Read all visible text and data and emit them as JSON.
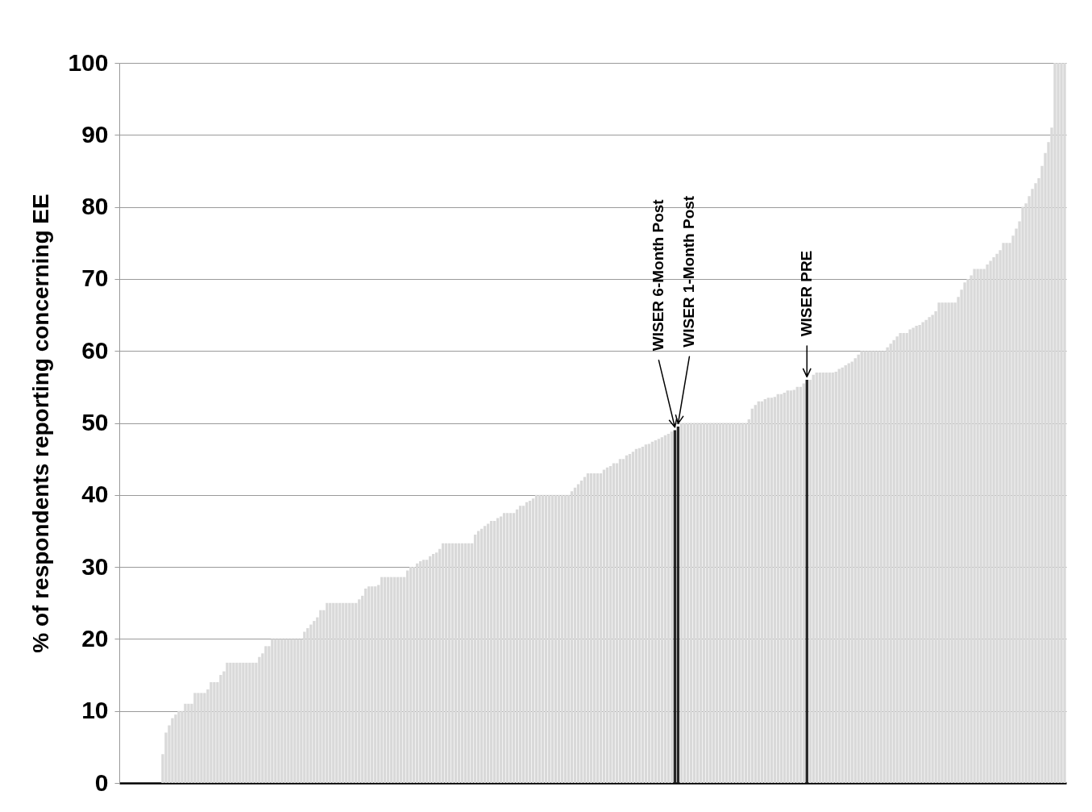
{
  "chart_data": {
    "type": "bar",
    "ylabel": "% of respondents reporting concerning EE",
    "categories": [
      null,
      null,
      null,
      null,
      null,
      null,
      null,
      null,
      null,
      null,
      null,
      null,
      null,
      null,
      null,
      null,
      null,
      null,
      null,
      null,
      null,
      null,
      null,
      null,
      null,
      null,
      null,
      null,
      null,
      null,
      null,
      null,
      null,
      null,
      null,
      null,
      null,
      null,
      null,
      null,
      null,
      null,
      null,
      null,
      null,
      null,
      null,
      null,
      null,
      null,
      null,
      null,
      null,
      null,
      null,
      null,
      null,
      null,
      null,
      null,
      null,
      null,
      null,
      null,
      null,
      null,
      null,
      null,
      null,
      null,
      null,
      null,
      null,
      null,
      null,
      null,
      null,
      null,
      null,
      null,
      null,
      null,
      null,
      null,
      null,
      null,
      null,
      null,
      null,
      null,
      null,
      null,
      null,
      null,
      null,
      null,
      null,
      null,
      null,
      null,
      null,
      null,
      null,
      null,
      null,
      null,
      null,
      null,
      null,
      null,
      null,
      null,
      null,
      null,
      null,
      null,
      null,
      null,
      null,
      null,
      null,
      null,
      null,
      null,
      null,
      null,
      null,
      null,
      null,
      null,
      null,
      null,
      null,
      null,
      null,
      null,
      null,
      null,
      null,
      null,
      null,
      null,
      null,
      null,
      null,
      null,
      null,
      null,
      null,
      null,
      null,
      null,
      null,
      null,
      null,
      null,
      null,
      null,
      null,
      null,
      null,
      null,
      null,
      null,
      null,
      null,
      null,
      null,
      null,
      null,
      null,
      null,
      null,
      null,
      null,
      null,
      null,
      null,
      null,
      null,
      null,
      null,
      null,
      null,
      null,
      null,
      null,
      null,
      null,
      null,
      null,
      null,
      null,
      null,
      null,
      null,
      null,
      null,
      null,
      null,
      null,
      null,
      null,
      null,
      null,
      null,
      null,
      null,
      null,
      null,
      null,
      null,
      null,
      null,
      null,
      null,
      null,
      null,
      null,
      null,
      null,
      null,
      null,
      null,
      null,
      null,
      null,
      null,
      null,
      null,
      null,
      null,
      null,
      null,
      null,
      null,
      null,
      null,
      null,
      null,
      null,
      null,
      null,
      null,
      null,
      null,
      null,
      null,
      null,
      null,
      null,
      null,
      null,
      null,
      null,
      null,
      null,
      null,
      null,
      null,
      null,
      null,
      null,
      null,
      null,
      null,
      null,
      null,
      null,
      null,
      null,
      null,
      null,
      null,
      null,
      null,
      null,
      null,
      null,
      null,
      null,
      null,
      null,
      null,
      null,
      null,
      null,
      null,
      null,
      null,
      null,
      null,
      null,
      null
    ],
    "values": [
      0,
      0,
      0,
      0,
      0,
      0,
      0,
      0,
      0,
      0,
      0,
      0,
      0,
      4,
      7,
      8,
      9,
      9.5,
      10,
      10,
      11,
      11,
      11,
      12.5,
      12.5,
      12.5,
      12.5,
      13,
      14,
      14,
      14,
      15,
      15.5,
      16.7,
      16.7,
      16.7,
      16.7,
      16.7,
      16.7,
      16.7,
      16.7,
      16.7,
      16.7,
      17.5,
      18,
      19,
      19,
      20,
      20,
      20,
      20,
      20,
      20,
      20,
      20,
      20,
      20,
      21,
      21.5,
      22,
      22.5,
      23,
      24,
      24,
      25,
      25,
      25,
      25,
      25,
      25,
      25,
      25,
      25,
      25,
      25.5,
      26,
      27,
      27.3,
      27.3,
      27.3,
      27.5,
      28.6,
      28.6,
      28.6,
      28.6,
      28.6,
      28.6,
      28.6,
      28.6,
      29.5,
      30,
      30,
      30.5,
      30.8,
      31,
      31,
      31.5,
      31.8,
      32,
      32.5,
      33.3,
      33.3,
      33.3,
      33.3,
      33.3,
      33.3,
      33.3,
      33.3,
      33.3,
      33.3,
      34.5,
      35,
      35.3,
      35.7,
      36,
      36.4,
      36.4,
      36.8,
      37,
      37.5,
      37.5,
      37.5,
      37.5,
      38,
      38.5,
      38.5,
      39,
      39.2,
      39.5,
      40,
      40,
      40,
      40,
      40,
      40,
      40,
      40,
      40,
      40,
      40,
      40.5,
      41,
      41.5,
      42,
      42.5,
      43,
      43,
      43,
      43,
      43,
      43.5,
      43.8,
      44,
      44.4,
      44.4,
      45,
      45,
      45.5,
      45.7,
      46,
      46.4,
      46.5,
      46.7,
      47,
      47.1,
      47.4,
      47.6,
      47.8,
      48,
      48.3,
      48.5,
      48.8,
      49,
      49.5,
      50,
      50,
      50,
      50,
      50,
      50,
      50,
      50,
      50,
      50,
      50,
      50,
      50,
      50,
      50,
      50,
      50,
      50,
      50,
      50,
      50,
      50.5,
      52,
      52.5,
      53,
      53,
      53.3,
      53.5,
      53.5,
      53.6,
      54,
      54,
      54.2,
      54.5,
      54.5,
      54.6,
      55,
      55,
      55.5,
      56,
      56,
      56.7,
      57,
      57,
      57,
      57,
      57,
      57,
      57.1,
      57.5,
      57.7,
      58,
      58.3,
      58.5,
      59,
      59.5,
      60,
      60,
      60,
      60,
      60,
      60,
      60,
      60,
      60.5,
      61,
      61.5,
      62,
      62.5,
      62.5,
      62.5,
      63,
      63.2,
      63.5,
      63.6,
      64,
      64.3,
      64.7,
      65,
      65.5,
      66.7,
      66.7,
      66.7,
      66.7,
      66.7,
      66.7,
      67.5,
      68.5,
      69.5,
      70,
      70.5,
      71.4,
      71.4,
      71.4,
      71.4,
      72,
      72.5,
      73,
      73.5,
      74,
      75,
      75,
      75,
      76,
      77,
      78,
      80,
      80.5,
      81.5,
      82.5,
      83.3,
      84,
      85.7,
      87.5,
      89,
      91,
      100,
      100,
      100,
      100
    ],
    "colors": [
      "#d9d9d9",
      "#d9d9d9",
      "#d9d9d9",
      "#d9d9d9",
      "#d9d9d9",
      "#d9d9d9",
      "#d9d9d9",
      "#d9d9d9",
      "#d9d9d9",
      "#d9d9d9",
      "#d9d9d9",
      "#d9d9d9",
      "#d9d9d9",
      "#d9d9d9",
      "#d9d9d9",
      "#d9d9d9",
      "#d9d9d9",
      "#d9d9d9",
      "#d9d9d9",
      "#d9d9d9",
      "#d9d9d9",
      "#d9d9d9",
      "#d9d9d9",
      "#d9d9d9",
      "#d9d9d9",
      "#d9d9d9",
      "#d9d9d9",
      "#d9d9d9",
      "#d9d9d9",
      "#d9d9d9",
      "#d9d9d9",
      "#d9d9d9",
      "#d9d9d9",
      "#d9d9d9",
      "#d9d9d9",
      "#d9d9d9",
      "#d9d9d9",
      "#d9d9d9",
      "#d9d9d9",
      "#d9d9d9",
      "#d9d9d9",
      "#d9d9d9",
      "#d9d9d9",
      "#d9d9d9",
      "#d9d9d9",
      "#d9d9d9",
      "#d9d9d9",
      "#d9d9d9",
      "#d9d9d9",
      "#d9d9d9",
      "#d9d9d9",
      "#d9d9d9",
      "#d9d9d9",
      "#d9d9d9",
      "#d9d9d9",
      "#d9d9d9",
      "#d9d9d9",
      "#d9d9d9",
      "#d9d9d9",
      "#d9d9d9",
      "#d9d9d9",
      "#d9d9d9",
      "#d9d9d9",
      "#d9d9d9",
      "#d9d9d9",
      "#d9d9d9",
      "#d9d9d9",
      "#d9d9d9",
      "#d9d9d9",
      "#d9d9d9",
      "#d9d9d9",
      "#d9d9d9",
      "#d9d9d9",
      "#d9d9d9",
      "#d9d9d9",
      "#d9d9d9",
      "#d9d9d9",
      "#d9d9d9",
      "#d9d9d9",
      "#d9d9d9",
      "#d9d9d9",
      "#d9d9d9",
      "#d9d9d9",
      "#d9d9d9",
      "#d9d9d9",
      "#d9d9d9",
      "#d9d9d9",
      "#d9d9d9",
      "#d9d9d9",
      "#d9d9d9",
      "#d9d9d9",
      "#d9d9d9",
      "#d9d9d9",
      "#d9d9d9",
      "#d9d9d9",
      "#d9d9d9",
      "#d9d9d9",
      "#d9d9d9",
      "#d9d9d9",
      "#d9d9d9",
      "#d9d9d9",
      "#d9d9d9",
      "#d9d9d9",
      "#d9d9d9",
      "#d9d9d9",
      "#d9d9d9",
      "#d9d9d9",
      "#d9d9d9",
      "#d9d9d9",
      "#d9d9d9",
      "#d9d9d9",
      "#d9d9d9",
      "#d9d9d9",
      "#d9d9d9",
      "#d9d9d9",
      "#d9d9d9",
      "#d9d9d9",
      "#d9d9d9",
      "#d9d9d9",
      "#d9d9d9",
      "#d9d9d9",
      "#d9d9d9",
      "#d9d9d9",
      "#d9d9d9",
      "#d9d9d9",
      "#d9d9d9",
      "#d9d9d9",
      "#d9d9d9",
      "#d9d9d9",
      "#d9d9d9",
      "#d9d9d9",
      "#d9d9d9",
      "#d9d9d9",
      "#d9d9d9",
      "#d9d9d9",
      "#d9d9d9",
      "#d9d9d9",
      "#d9d9d9",
      "#d9d9d9",
      "#d9d9d9",
      "#d9d9d9",
      "#d9d9d9",
      "#d9d9d9",
      "#d9d9d9",
      "#d9d9d9",
      "#d9d9d9",
      "#d9d9d9",
      "#d9d9d9",
      "#d9d9d9",
      "#d9d9d9",
      "#d9d9d9",
      "#d9d9d9",
      "#d9d9d9",
      "#d9d9d9",
      "#d9d9d9",
      "#d9d9d9",
      "#d9d9d9",
      "#d9d9d9",
      "#d9d9d9",
      "#d9d9d9",
      "#d9d9d9",
      "#d9d9d9",
      "#d9d9d9",
      "#d9d9d9",
      "#d9d9d9",
      "#d9d9d9",
      "#d9d9d9",
      "#d9d9d9",
      "#d9d9d9",
      "#d9d9d9",
      "#d9d9d9",
      "#d9d9d9",
      "#262626",
      "#262626",
      "#d9d9d9",
      "#d9d9d9",
      "#d9d9d9",
      "#d9d9d9",
      "#d9d9d9",
      "#d9d9d9",
      "#d9d9d9",
      "#d9d9d9",
      "#d9d9d9",
      "#d9d9d9",
      "#d9d9d9",
      "#d9d9d9",
      "#d9d9d9",
      "#d9d9d9",
      "#d9d9d9",
      "#d9d9d9",
      "#d9d9d9",
      "#d9d9d9",
      "#d9d9d9",
      "#d9d9d9",
      "#d9d9d9",
      "#d9d9d9",
      "#d9d9d9",
      "#d9d9d9",
      "#d9d9d9",
      "#d9d9d9",
      "#d9d9d9",
      "#d9d9d9",
      "#d9d9d9",
      "#d9d9d9",
      "#d9d9d9",
      "#d9d9d9",
      "#d9d9d9",
      "#d9d9d9",
      "#d9d9d9",
      "#d9d9d9",
      "#d9d9d9",
      "#d9d9d9",
      "#d9d9d9",
      "#262626",
      "#d9d9d9",
      "#d9d9d9",
      "#d9d9d9",
      "#d9d9d9",
      "#d9d9d9",
      "#d9d9d9",
      "#d9d9d9",
      "#d9d9d9",
      "#d9d9d9",
      "#d9d9d9",
      "#d9d9d9",
      "#d9d9d9",
      "#d9d9d9",
      "#d9d9d9",
      "#d9d9d9",
      "#d9d9d9",
      "#d9d9d9",
      "#d9d9d9",
      "#d9d9d9",
      "#d9d9d9",
      "#d9d9d9",
      "#d9d9d9",
      "#d9d9d9",
      "#d9d9d9",
      "#d9d9d9",
      "#d9d9d9",
      "#d9d9d9",
      "#d9d9d9",
      "#d9d9d9",
      "#d9d9d9",
      "#d9d9d9",
      "#d9d9d9",
      "#d9d9d9",
      "#d9d9d9",
      "#d9d9d9",
      "#d9d9d9",
      "#d9d9d9",
      "#d9d9d9",
      "#d9d9d9",
      "#d9d9d9",
      "#d9d9d9",
      "#d9d9d9",
      "#d9d9d9",
      "#d9d9d9",
      "#d9d9d9",
      "#d9d9d9",
      "#d9d9d9",
      "#d9d9d9",
      "#d9d9d9",
      "#d9d9d9",
      "#d9d9d9",
      "#d9d9d9",
      "#d9d9d9",
      "#d9d9d9",
      "#d9d9d9",
      "#d9d9d9",
      "#d9d9d9",
      "#d9d9d9",
      "#d9d9d9",
      "#d9d9d9",
      "#d9d9d9",
      "#d9d9d9",
      "#d9d9d9",
      "#d9d9d9",
      "#d9d9d9",
      "#d9d9d9",
      "#d9d9d9",
      "#d9d9d9",
      "#d9d9d9",
      "#d9d9d9",
      "#d9d9d9",
      "#d9d9d9",
      "#d9d9d9",
      "#d9d9d9",
      "#d9d9d9",
      "#d9d9d9",
      "#d9d9d9",
      "#d9d9d9",
      "#d9d9d9",
      "#d9d9d9"
    ],
    "ylim": [
      0,
      100
    ],
    "yticks": [
      0,
      10,
      20,
      30,
      40,
      50,
      60,
      70,
      80,
      90,
      100
    ],
    "grid": "y",
    "tick_labels": "y",
    "annotations": [
      "WISER 6-Month Post",
      "WISER 1-Month Post",
      "WISER PRE"
    ]
  }
}
